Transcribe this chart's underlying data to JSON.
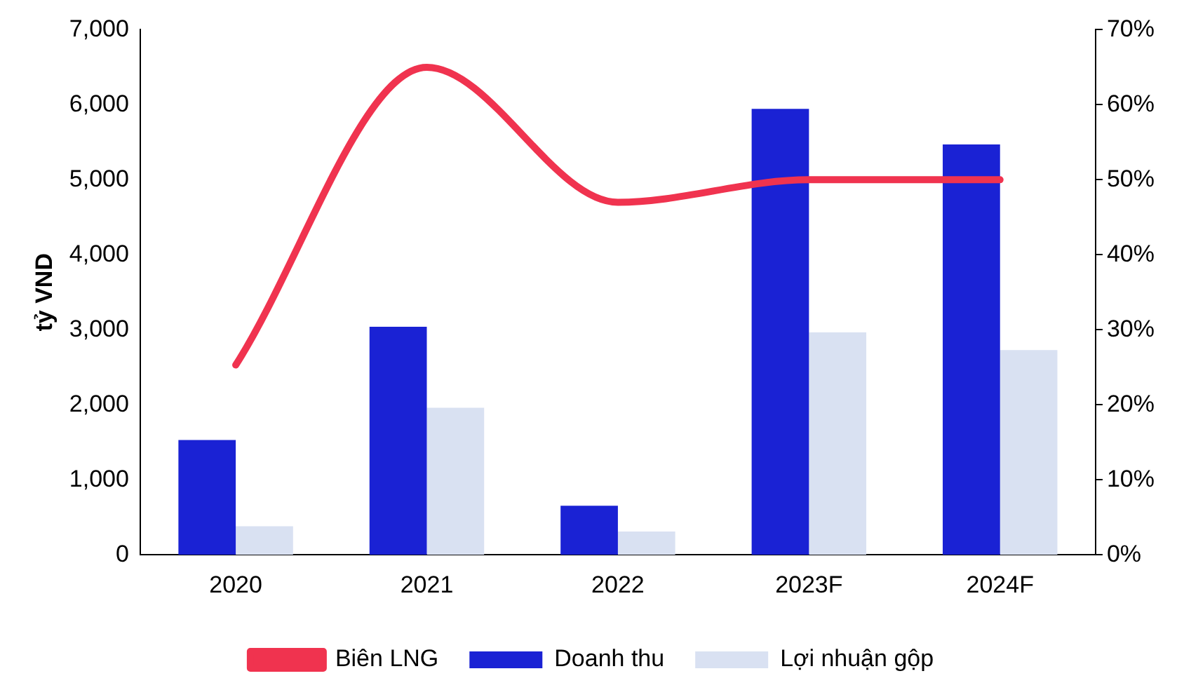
{
  "chart_data": {
    "type": "bar",
    "ylabel": "tỷ VND",
    "categories": [
      "2020",
      "2021",
      "2022",
      "2023F",
      "2024F"
    ],
    "series": [
      {
        "name": "Doanh thu",
        "color": "#1a22d4",
        "values": [
          1530,
          3040,
          655,
          5945,
          5470
        ]
      },
      {
        "name": "Lợi nhuận gộp",
        "color": "#d9e1f2",
        "values": [
          380,
          1960,
          310,
          2965,
          2730
        ]
      },
      {
        "name": "Biên LNG",
        "type": "line",
        "axis": "y2",
        "color": "#f0334f",
        "values": [
          25.3,
          65,
          47,
          50,
          50
        ]
      }
    ],
    "ylim": [
      0,
      7000
    ],
    "yticks": [
      {
        "value": 0,
        "label": "0"
      },
      {
        "value": 1000,
        "label": "1,000"
      },
      {
        "value": 2000,
        "label": "2,000"
      },
      {
        "value": 3000,
        "label": "3,000"
      },
      {
        "value": 4000,
        "label": "4,000"
      },
      {
        "value": 5000,
        "label": "5,000"
      },
      {
        "value": 6000,
        "label": "6,000"
      },
      {
        "value": 7000,
        "label": "7,000"
      }
    ],
    "y2lim": [
      0,
      70
    ],
    "y2ticks": [
      {
        "value": 0,
        "label": "0%"
      },
      {
        "value": 10,
        "label": "10%"
      },
      {
        "value": 20,
        "label": "20%"
      },
      {
        "value": 30,
        "label": "30%"
      },
      {
        "value": 40,
        "label": "40%"
      },
      {
        "value": 50,
        "label": "50%"
      },
      {
        "value": 60,
        "label": "60%"
      },
      {
        "value": 70,
        "label": "70%"
      }
    ],
    "grid": false,
    "legend": "bottom",
    "marker": "none"
  }
}
